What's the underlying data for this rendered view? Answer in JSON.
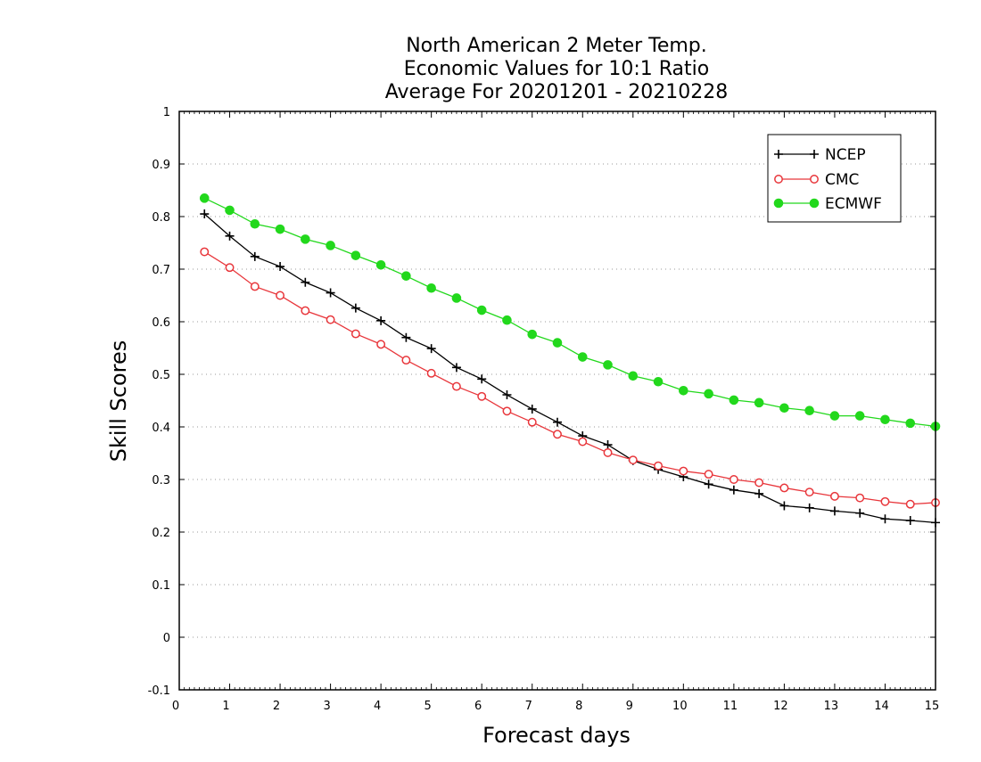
{
  "chart_data": {
    "type": "line",
    "title_lines": [
      "North American 2 Meter Temp.",
      "Economic Values for 10:1 Ratio",
      "Average For 20201201 - 20210228"
    ],
    "xlabel": "Forecast days",
    "ylabel": "Skill Scores",
    "xlim": [
      0,
      15
    ],
    "ylim": [
      -0.1,
      1
    ],
    "x_ticks": [
      0,
      1,
      2,
      3,
      4,
      5,
      6,
      7,
      8,
      9,
      10,
      11,
      12,
      13,
      14,
      15
    ],
    "x_tick_labels": [
      "0",
      "1",
      "2",
      "3",
      "4",
      "5",
      "6",
      "7",
      "8",
      "9",
      "10",
      "11",
      "12",
      "13",
      "14",
      "15"
    ],
    "y_ticks": [
      -0.1,
      0,
      0.1,
      0.2,
      0.3,
      0.4,
      0.5,
      0.6,
      0.7,
      0.8,
      0.9,
      1
    ],
    "y_tick_labels": [
      "-0.1",
      "0",
      "0.1",
      "0.2",
      "0.3",
      "0.4",
      "0.5",
      "0.6",
      "0.7",
      "0.8",
      "0.9",
      "1"
    ],
    "grid": "horizontal dotted",
    "legend_position": "top-right",
    "x": [
      0.5,
      1,
      1.5,
      2,
      2.5,
      3,
      3.5,
      4,
      4.5,
      5,
      5.5,
      6,
      6.5,
      7,
      7.5,
      8,
      8.5,
      9,
      9.5,
      10,
      10.5,
      11,
      11.5,
      12,
      12.5,
      13,
      13.5,
      14,
      14.5,
      15
    ],
    "series": [
      {
        "name": "NCEP",
        "color": "#000000",
        "marker": "plus",
        "values": [
          0.805,
          0.763,
          0.724,
          0.705,
          0.675,
          0.655,
          0.626,
          0.602,
          0.57,
          0.549,
          0.513,
          0.491,
          0.461,
          0.434,
          0.409,
          0.383,
          0.366,
          0.336,
          0.319,
          0.305,
          0.291,
          0.28,
          0.273,
          0.25,
          0.246,
          0.24,
          0.236,
          0.225,
          0.222,
          0.218
        ]
      },
      {
        "name": "CMC",
        "color": "#e8363b",
        "marker": "open-circle",
        "values": [
          0.733,
          0.703,
          0.667,
          0.65,
          0.621,
          0.604,
          0.577,
          0.557,
          0.527,
          0.502,
          0.477,
          0.458,
          0.43,
          0.409,
          0.386,
          0.372,
          0.351,
          0.337,
          0.326,
          0.316,
          0.31,
          0.3,
          0.294,
          0.284,
          0.276,
          0.268,
          0.265,
          0.258,
          0.253,
          0.256
        ]
      },
      {
        "name": "ECMWF",
        "color": "#22d81c",
        "marker": "filled-circle",
        "values": [
          0.835,
          0.812,
          0.786,
          0.776,
          0.757,
          0.745,
          0.726,
          0.708,
          0.687,
          0.664,
          0.645,
          0.622,
          0.603,
          0.576,
          0.56,
          0.533,
          0.518,
          0.497,
          0.486,
          0.469,
          0.463,
          0.451,
          0.446,
          0.436,
          0.431,
          0.421,
          0.421,
          0.414,
          0.407,
          0.401
        ]
      }
    ]
  }
}
